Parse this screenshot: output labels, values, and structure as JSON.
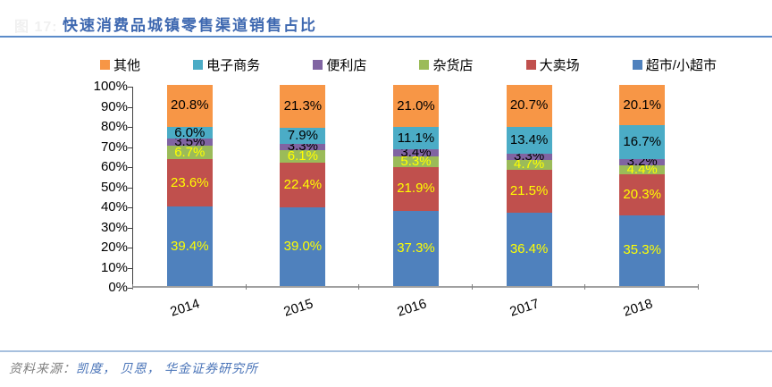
{
  "header": {
    "figure_label": "图 17:",
    "title": "快速消费品城镇零售渠道销售占比"
  },
  "footer": {
    "source_label": "资料来源：",
    "source_names": "凯度， 贝恩， 华金证券研究所"
  },
  "chart_data": {
    "type": "bar",
    "stacked": true,
    "title": "快速消费品城镇零售渠道销售占比",
    "categories": [
      "2014",
      "2015",
      "2016",
      "2017",
      "2018"
    ],
    "series": [
      {
        "name": "超市/小超市",
        "color": "#4F81BD",
        "label_color": "#FFFF00",
        "values": [
          39.4,
          39.0,
          37.3,
          36.4,
          35.3
        ]
      },
      {
        "name": "大卖场",
        "color": "#C0504D",
        "label_color": "#FFFF00",
        "values": [
          23.6,
          22.4,
          21.9,
          21.5,
          20.3
        ]
      },
      {
        "name": "杂货店",
        "color": "#9BBB59",
        "label_color": "#FFFF00",
        "values": [
          6.7,
          6.1,
          5.3,
          4.7,
          4.4
        ]
      },
      {
        "name": "便利店",
        "color": "#8064A2",
        "label_color": "#000000",
        "values": [
          3.5,
          3.3,
          3.4,
          3.3,
          3.2
        ]
      },
      {
        "name": "电子商务",
        "color": "#4BACC6",
        "label_color": "#000000",
        "values": [
          6.0,
          7.9,
          11.1,
          13.4,
          16.7
        ]
      },
      {
        "name": "其他",
        "color": "#F79646",
        "label_color": "#000000",
        "values": [
          20.8,
          21.3,
          21.0,
          20.7,
          20.1
        ]
      }
    ],
    "legend_order": [
      "其他",
      "电子商务",
      "便利店",
      "杂货店",
      "大卖场",
      "超市/小超市"
    ],
    "y_ticks": [
      "100%",
      "90%",
      "80%",
      "70%",
      "60%",
      "50%",
      "40%",
      "30%",
      "20%",
      "10%",
      "0%"
    ],
    "ylim": [
      0,
      100
    ],
    "value_suffix": "%",
    "grid": false,
    "legend_position": "top"
  }
}
